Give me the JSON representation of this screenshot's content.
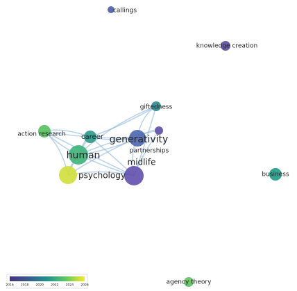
{
  "nodes": [
    {
      "label": "callings",
      "color": "#4a5aa6"
    },
    {
      "label": "knowledge creation",
      "color": "#5b4ea2"
    },
    {
      "label": "giftedness",
      "color": "#2a8b8d"
    },
    {
      "label": "action research",
      "color": "#55c05c"
    },
    {
      "label": "career",
      "color": "#2a9888"
    },
    {
      "label": "generativity",
      "color": "#4c66b0"
    },
    {
      "label": "partnerships",
      "color": "#5d4ea5"
    },
    {
      "label": "midlife",
      "color": "#6250ad"
    },
    {
      "label": "human",
      "color": "#3db37a"
    },
    {
      "label": "psychology",
      "color": "#d2df3a"
    },
    {
      "label": "business",
      "color": "#1f9c88"
    },
    {
      "label": "agency theory",
      "color": "#5fc15e"
    }
  ],
  "legend": {
    "ticks": [
      2016,
      2018,
      2020,
      2022,
      2024,
      2026
    ]
  }
}
